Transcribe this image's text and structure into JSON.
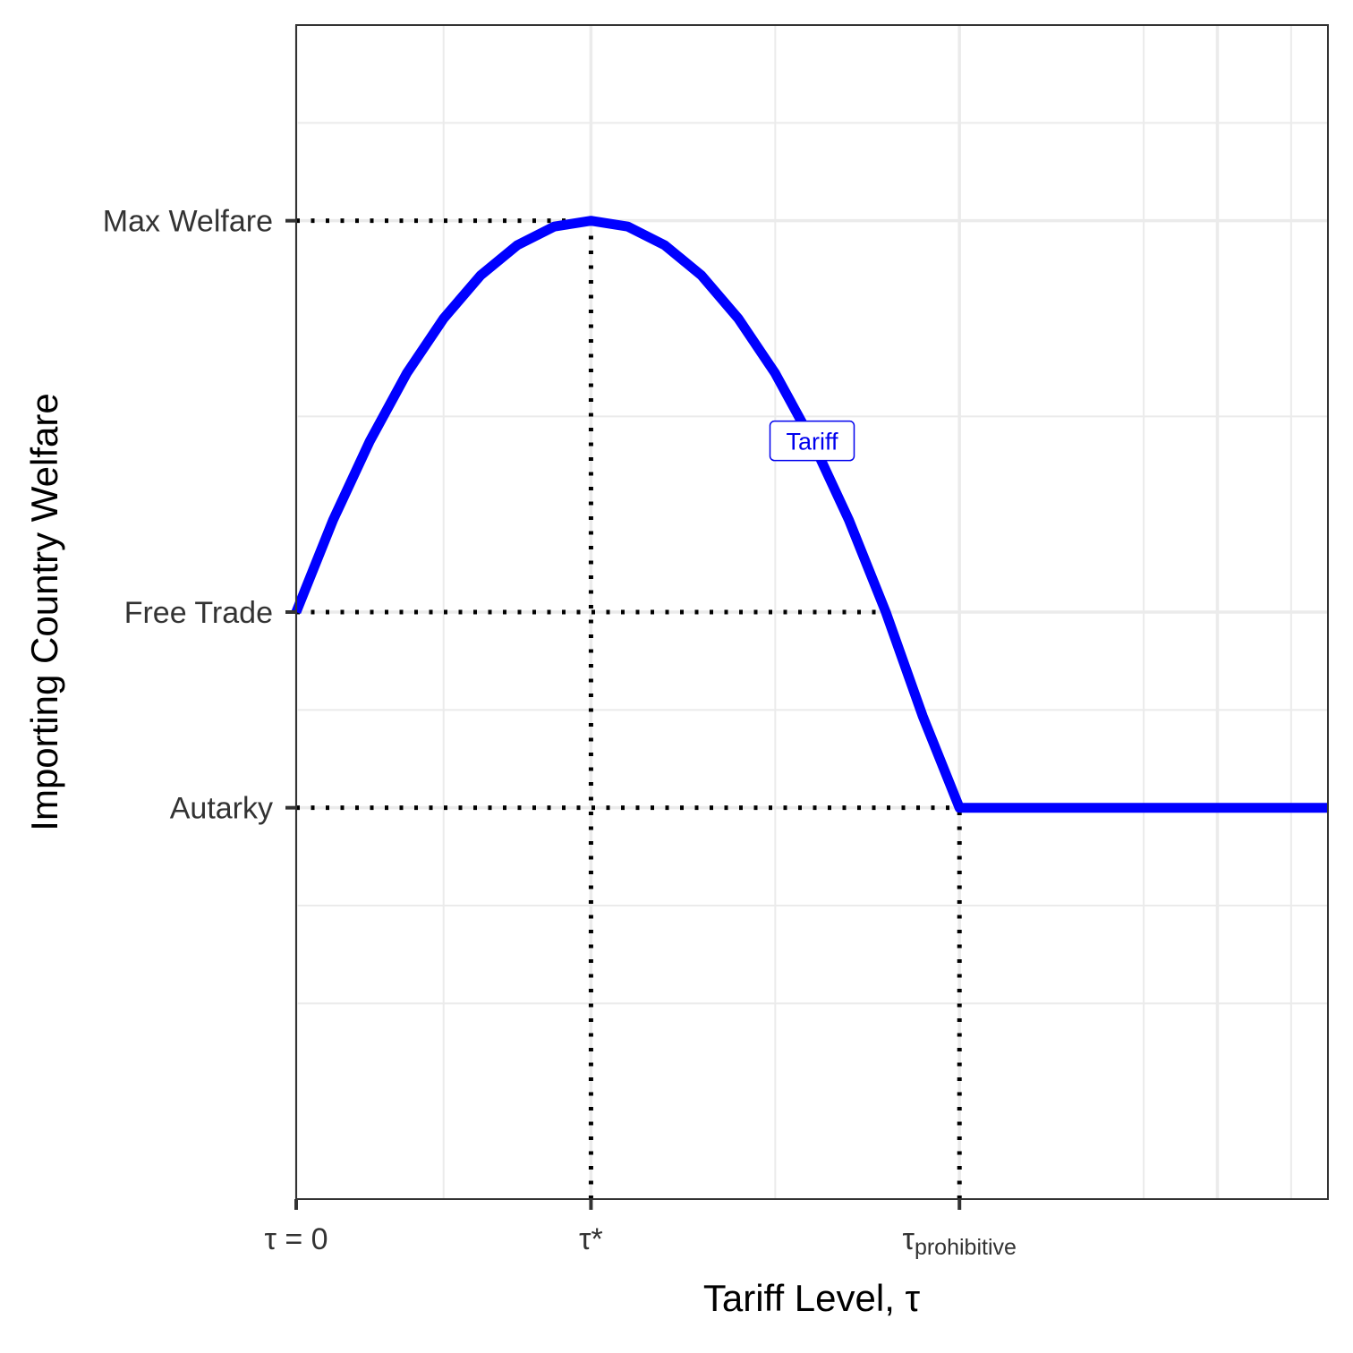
{
  "chart_data": {
    "type": "line",
    "title": "",
    "xlabel": "Tariff Level, τ",
    "ylabel": "Importing Country Welfare",
    "xlim": [
      0,
      7
    ],
    "ylim": [
      0,
      12
    ],
    "grid": true,
    "x_ticks": [
      {
        "value": 0,
        "label": "τ = 0"
      },
      {
        "value": 2,
        "label": "τ*"
      },
      {
        "value": 4.5,
        "label": "τ",
        "subscript": "prohibitive"
      }
    ],
    "y_ticks": [
      {
        "value": 4,
        "label": "Autarky"
      },
      {
        "value": 6,
        "label": "Free Trade"
      },
      {
        "value": 10,
        "label": "Max Welfare"
      }
    ],
    "series": [
      {
        "name": "Tariff",
        "color": "#0000ff",
        "x": [
          0,
          0.25,
          0.5,
          0.75,
          1,
          1.25,
          1.5,
          1.75,
          2,
          2.25,
          2.5,
          2.75,
          3,
          3.25,
          3.5,
          3.75,
          4,
          4.25,
          4.5,
          5,
          5.5,
          6,
          6.5,
          7
        ],
        "y": [
          6,
          6.94,
          7.75,
          8.44,
          9,
          9.44,
          9.75,
          9.94,
          10,
          9.94,
          9.75,
          9.44,
          9,
          8.44,
          7.75,
          6.94,
          6,
          4.94,
          4,
          4,
          4,
          4,
          4,
          4
        ]
      }
    ],
    "reference_lines": [
      {
        "type": "horizontal",
        "y": 10,
        "x_end": 2
      },
      {
        "type": "horizontal",
        "y": 6,
        "x_end": 4
      },
      {
        "type": "horizontal",
        "y": 4,
        "x_end": 4.5
      },
      {
        "type": "vertical",
        "x": 2,
        "y_end": 10
      },
      {
        "type": "vertical",
        "x": 4.5,
        "y_end": 4
      }
    ],
    "annotations": [
      {
        "text": "Tariff",
        "x": 3.5,
        "y": 7.75,
        "color": "#0000ee"
      }
    ]
  }
}
